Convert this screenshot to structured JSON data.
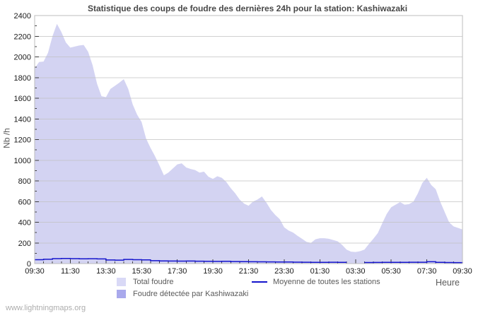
{
  "page": {
    "watermark": "www.lightningmaps.org"
  },
  "colors": {
    "background": "#ffffff",
    "plot_border": "#bdbdbd",
    "grid": "#c2c2c2",
    "tick": "#3c3c3c",
    "tick_label": "#1a1a1a",
    "title": "#484848",
    "axis_title": "#5a5a5a",
    "legend_text": "#5a5a5a",
    "watermark": "#adadad"
  },
  "chart_data": {
    "type": "area",
    "title": "Statistique des coups de foudre des dernières 24h pour la station: Kashiwazaki",
    "ylabel": "Nb /h",
    "xlabel": "Heure",
    "ylim": [
      0,
      2400
    ],
    "ytick_step": 200,
    "ytick_minor_step": 100,
    "x_labels": [
      "09:30",
      "11:30",
      "13:30",
      "15:30",
      "17:30",
      "19:30",
      "21:30",
      "23:30",
      "01:30",
      "03:30",
      "05:30",
      "07:30",
      "09:30"
    ],
    "x_minor_ticks_per_label_interval": 4,
    "grid": "horizontal",
    "legend_position": "bottom",
    "series": [
      {
        "name": "Total foudre",
        "type": "area",
        "legend_color": "#d9d9f6",
        "plot_color": "#d3d3f2",
        "interval_minutes": 15,
        "start": "09:30",
        "values": [
          1890,
          1950,
          1955,
          2040,
          2200,
          2320,
          2240,
          2140,
          2090,
          2100,
          2110,
          2115,
          2050,
          1920,
          1740,
          1620,
          1610,
          1690,
          1720,
          1750,
          1785,
          1690,
          1540,
          1440,
          1370,
          1210,
          1120,
          1040,
          950,
          855,
          880,
          920,
          960,
          970,
          930,
          915,
          905,
          880,
          890,
          840,
          820,
          845,
          830,
          790,
          730,
          680,
          620,
          580,
          560,
          600,
          620,
          650,
          590,
          520,
          470,
          430,
          350,
          320,
          300,
          268,
          240,
          210,
          200,
          235,
          245,
          245,
          240,
          228,
          215,
          180,
          135,
          115,
          112,
          120,
          135,
          190,
          240,
          295,
          390,
          480,
          545,
          570,
          595,
          570,
          575,
          600,
          680,
          780,
          830,
          760,
          720,
          600,
          500,
          400,
          360,
          345,
          330
        ]
      },
      {
        "name": "Foudre détectée par Kashiwazaki",
        "type": "area",
        "legend_color": "#a9a9ec",
        "plot_color": "#a9a9ec",
        "interval_minutes": 15,
        "start": "09:30",
        "values": []
      },
      {
        "name": "Moyenne de toutes les stations",
        "type": "line",
        "legend_color": "#1414cc",
        "plot_color": "#1414cc",
        "interval_minutes": 30,
        "start": "09:30",
        "values": [
          38,
          42,
          48,
          50,
          48,
          46,
          47,
          45,
          35,
          33,
          40,
          38,
          36,
          28,
          26,
          25,
          24,
          25,
          23,
          22,
          21,
          22,
          20,
          19,
          18,
          17,
          16,
          15,
          15,
          14,
          13,
          12,
          12,
          13,
          12,
          null,
          null,
          10,
          11,
          12,
          12,
          12,
          13,
          13,
          18,
          12,
          10,
          9,
          8
        ]
      }
    ]
  }
}
